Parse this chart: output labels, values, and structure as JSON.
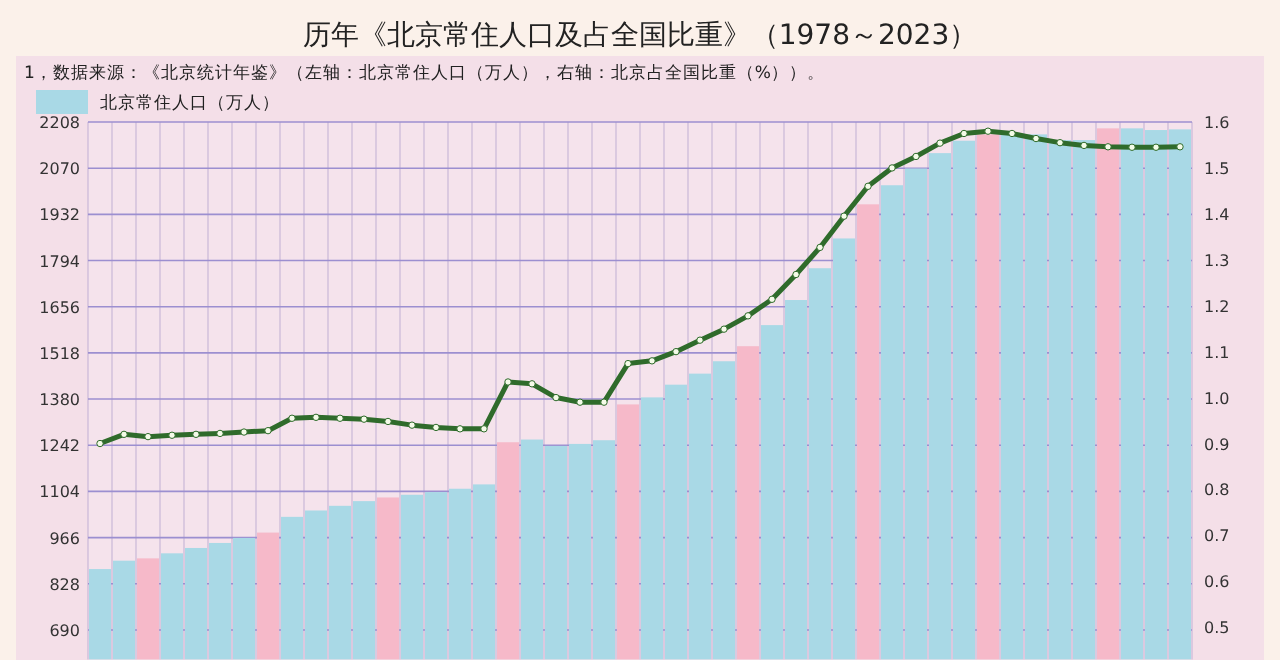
{
  "chart_data": {
    "type": "bar",
    "title": "历年《北京常住人口及占全国比重》（1978～2023）",
    "annotations": [
      "1，数据来源：《北京统计年鉴》（左轴：北京常住人口（万人），右轴：北京占全国比重（%））。"
    ],
    "categories": [
      null,
      null,
      null,
      null,
      null,
      null,
      null,
      null,
      null,
      null,
      null,
      null,
      null,
      null,
      null,
      null,
      null,
      null,
      null,
      null,
      null,
      null,
      null,
      null,
      null,
      null,
      null,
      null,
      null,
      null,
      null,
      null,
      null,
      null,
      null,
      null,
      null,
      null,
      null,
      null,
      null,
      null,
      null,
      null,
      null,
      null
    ],
    "ylim": [
      602,
      2208
    ],
    "yticks": [
      690,
      828,
      966,
      1104,
      1242,
      1380,
      1518,
      1656,
      1794,
      1932,
      2070,
      2208
    ],
    "y2lim": [
      0.43,
      1.6
    ],
    "y2ticks": [
      0.5,
      0.6,
      0.7,
      0.8,
      0.9,
      {
        "value": 1,
        "label": "1.0"
      },
      1.1,
      1.2,
      1.3,
      1.4,
      1.5,
      1.6
    ],
    "grid": true,
    "legend": "top left",
    "series": [
      {
        "name": "北京常住人口（万人）",
        "color": "#a9d9e6",
        "colors": [
          "#a9d9e6",
          "#a9d9e6",
          "#f6b9c9",
          "#a9d9e6",
          "#a9d9e6",
          "#a9d9e6",
          "#a9d9e6",
          "#f6b9c9",
          "#a9d9e6",
          "#a9d9e6",
          "#a9d9e6",
          "#a9d9e6",
          "#f6b9c9",
          "#a9d9e6",
          "#a9d9e6",
          "#a9d9e6",
          "#a9d9e6",
          "#f6b9c9",
          "#a9d9e6",
          "#a9d9e6",
          "#a9d9e6",
          "#a9d9e6",
          "#f6b9c9",
          "#a9d9e6",
          "#a9d9e6",
          "#a9d9e6",
          "#a9d9e6",
          "#f6b9c9",
          "#a9d9e6",
          "#a9d9e6",
          "#a9d9e6",
          "#a9d9e6",
          "#f6b9c9",
          "#a9d9e6",
          "#a9d9e6",
          "#a9d9e6",
          "#a9d9e6",
          "#f6b9c9",
          "#a9d9e6",
          "#a9d9e6",
          "#a9d9e6",
          "#a9d9e6",
          "#f6b9c9",
          "#a9d9e6",
          "#a9d9e6",
          "#a9d9e6"
        ],
        "values": [
          872,
          897,
          904,
          919,
          935,
          950,
          965,
          981,
          1028,
          1047,
          1061,
          1075,
          1086,
          1094,
          1102,
          1112,
          1125,
          1251,
          1259,
          1240,
          1246,
          1257,
          1364,
          1385,
          1423,
          1456,
          1493,
          1538,
          1601,
          1676,
          1771,
          1860,
          1962,
          2019,
          2069,
          2115,
          2152,
          2171,
          2173,
          2171,
          2154,
          2154,
          2189,
          2189,
          2184,
          2186
        ]
      },
      {
        "type": "line",
        "axis": "y2",
        "color": "#2f6b2b",
        "marker": "circle",
        "line_style": "solid",
        "values": [
          0.9,
          0.92,
          0.915,
          0.918,
          0.92,
          0.922,
          0.925,
          0.928,
          0.955,
          0.957,
          0.955,
          0.953,
          0.948,
          0.94,
          0.935,
          0.932,
          0.932,
          1.034,
          1.03,
          1.0,
          0.99,
          0.99,
          1.074,
          1.08,
          1.1,
          1.125,
          1.149,
          1.178,
          1.214,
          1.268,
          1.327,
          1.395,
          1.46,
          1.5,
          1.525,
          1.554,
          1.575,
          1.58,
          1.575,
          1.564,
          1.555,
          1.549,
          1.546,
          1.545,
          1.545,
          1.546
        ]
      }
    ]
  }
}
